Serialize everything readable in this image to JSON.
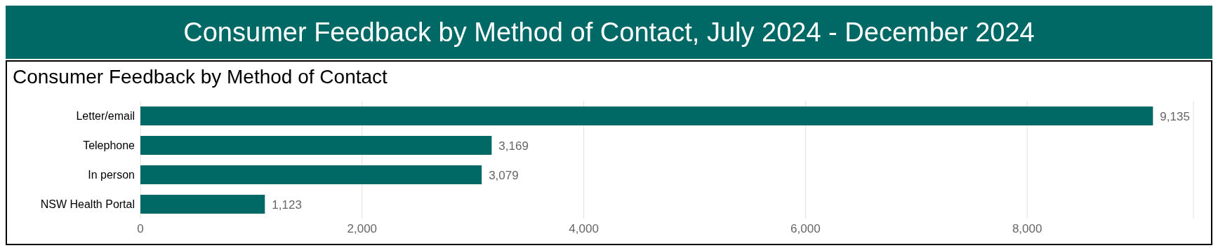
{
  "chart_data": {
    "type": "bar",
    "title": "Consumer Feedback by Method of Contact, July 2024 - December 2024",
    "subtitle": "Consumer Feedback by Method of Contact",
    "orientation": "horizontal",
    "categories": [
      "Letter/email",
      "Telephone",
      "In person",
      "NSW Health Portal"
    ],
    "values": [
      9135,
      3169,
      3079,
      1123
    ],
    "color": "#006966",
    "value_labels": [
      "9,135",
      "3,169",
      "3,079",
      "1,123"
    ],
    "xlim": [
      0,
      9500
    ],
    "xticks": [
      0,
      {
        "value": 2000,
        "label": "2,000"
      },
      {
        "value": 4000,
        "label": "4,000"
      },
      {
        "value": 6000,
        "label": "6,000"
      },
      {
        "value": 8000,
        "label": "8,000"
      }
    ],
    "grid": "x"
  }
}
